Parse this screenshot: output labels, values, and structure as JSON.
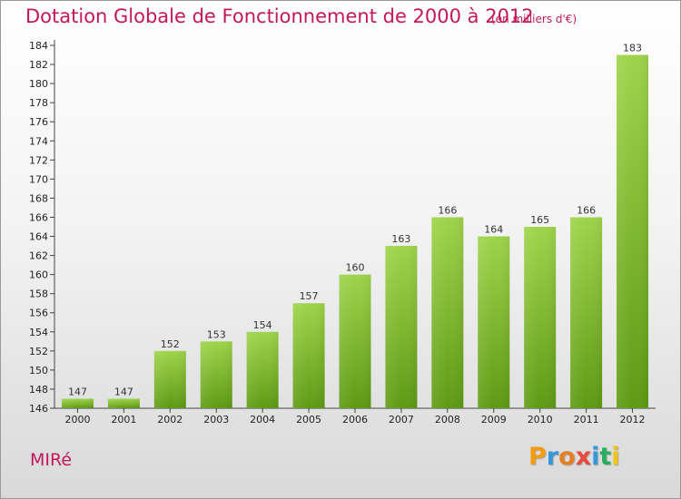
{
  "header": {
    "title": "Dotation Globale de Fonctionnement de 2000 à 2012",
    "unit": "(en milliers d'€)"
  },
  "commune_name": "MIRé",
  "logo": {
    "letters": [
      "P",
      "r",
      "o",
      "x",
      "i",
      "t",
      "i"
    ],
    "colors": [
      "#f39c12",
      "#3498db",
      "#e67e22",
      "#e74c3c",
      "#3498db",
      "#27ae60",
      "#f1c40f"
    ]
  },
  "chart_data": {
    "type": "bar",
    "title": "Dotation Globale de Fonctionnement de 2000 à 2012",
    "subtitle": "(en milliers d'€)",
    "categories": [
      "2000",
      "2001",
      "2002",
      "2003",
      "2004",
      "2005",
      "2006",
      "2007",
      "2008",
      "2009",
      "2010",
      "2011",
      "2012"
    ],
    "values": [
      147,
      147,
      152,
      153,
      154,
      157,
      160,
      163,
      166,
      164,
      165,
      166,
      183
    ],
    "value_labels": [
      "147",
      "147",
      "152",
      "153",
      "154",
      "157",
      "160",
      "163",
      "166",
      "164",
      "165",
      "166",
      "183"
    ],
    "ylim": [
      146,
      184
    ],
    "yticks": [
      146,
      148,
      150,
      152,
      154,
      156,
      158,
      160,
      162,
      164,
      166,
      168,
      170,
      172,
      174,
      176,
      178,
      180,
      182,
      184
    ],
    "ytick_labels": [
      "146",
      "148",
      "150",
      "152",
      "154",
      "156",
      "158",
      "160",
      "162",
      "164",
      "166",
      "168",
      "170",
      "172",
      "174",
      "176",
      "178",
      "180",
      "182",
      "184"
    ],
    "grid": false,
    "bar_color_top": "#9ed44a",
    "bar_color_bottom": "#5e9a14",
    "title_color": "#c2185b"
  }
}
